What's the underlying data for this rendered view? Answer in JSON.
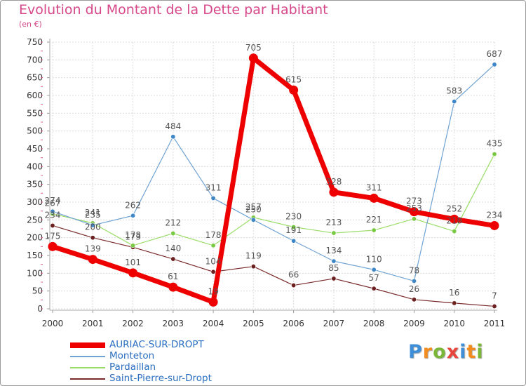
{
  "title": "Evolution du Montant de la Dette par Habitant",
  "unit": "(en €)",
  "logo": {
    "text": "Proxiti",
    "colors": [
      "#3f8fd8",
      "#f28c1e",
      "#7ab738",
      "#e8453c",
      "#3f8fd8",
      "#f28c1e",
      "#7ab738"
    ]
  },
  "chart_data": {
    "type": "line",
    "title": "Evolution du Montant de la Dette par Habitant",
    "ylabel": "(en €)",
    "xlabel": "",
    "ylim": [
      0,
      750
    ],
    "ytick_step": 50,
    "grid": true,
    "legend": "bottom-left",
    "x": [
      "2000",
      "2001",
      "2002",
      "2003",
      "2004",
      "2005",
      "2006",
      "2007",
      "2008",
      "2009",
      "2010",
      "2011"
    ],
    "series": [
      {
        "name": "Saint-Pierre-sur-Dropt",
        "color": "#7a2a2a",
        "width": 1.2,
        "values": [
          234,
          200,
          173,
          140,
          104,
          119,
          66,
          85,
          57,
          26,
          16,
          7
        ]
      },
      {
        "name": "Pardaillan",
        "color": "#99dd66",
        "width": 1.2,
        "values": [
          267,
          241,
          178,
          212,
          178,
          257,
          230,
          213,
          221,
          253,
          218,
          435
        ]
      },
      {
        "name": "Monteton",
        "color": "#6fa3d4",
        "width": 1.2,
        "values": [
          274,
          235,
          262,
          484,
          311,
          250,
          191,
          134,
          110,
          78,
          583,
          687
        ]
      },
      {
        "name": "AURIAC-SUR-DROPT",
        "color": "#ee0000",
        "width": 7,
        "values": [
          175,
          139,
          101,
          61,
          19,
          705,
          615,
          328,
          311,
          273,
          252,
          234
        ]
      }
    ],
    "legend_order": [
      "AURIAC-SUR-DROPT",
      "Monteton",
      "Pardaillan",
      "Saint-Pierre-sur-Dropt"
    ],
    "marker_colors": {
      "AURIAC-SUR-DROPT": "#ee0000",
      "Monteton": "#3f86c6",
      "Pardaillan": "#7ac943",
      "Saint-Pierre-sur-Dropt": "#6b1f1f"
    }
  }
}
